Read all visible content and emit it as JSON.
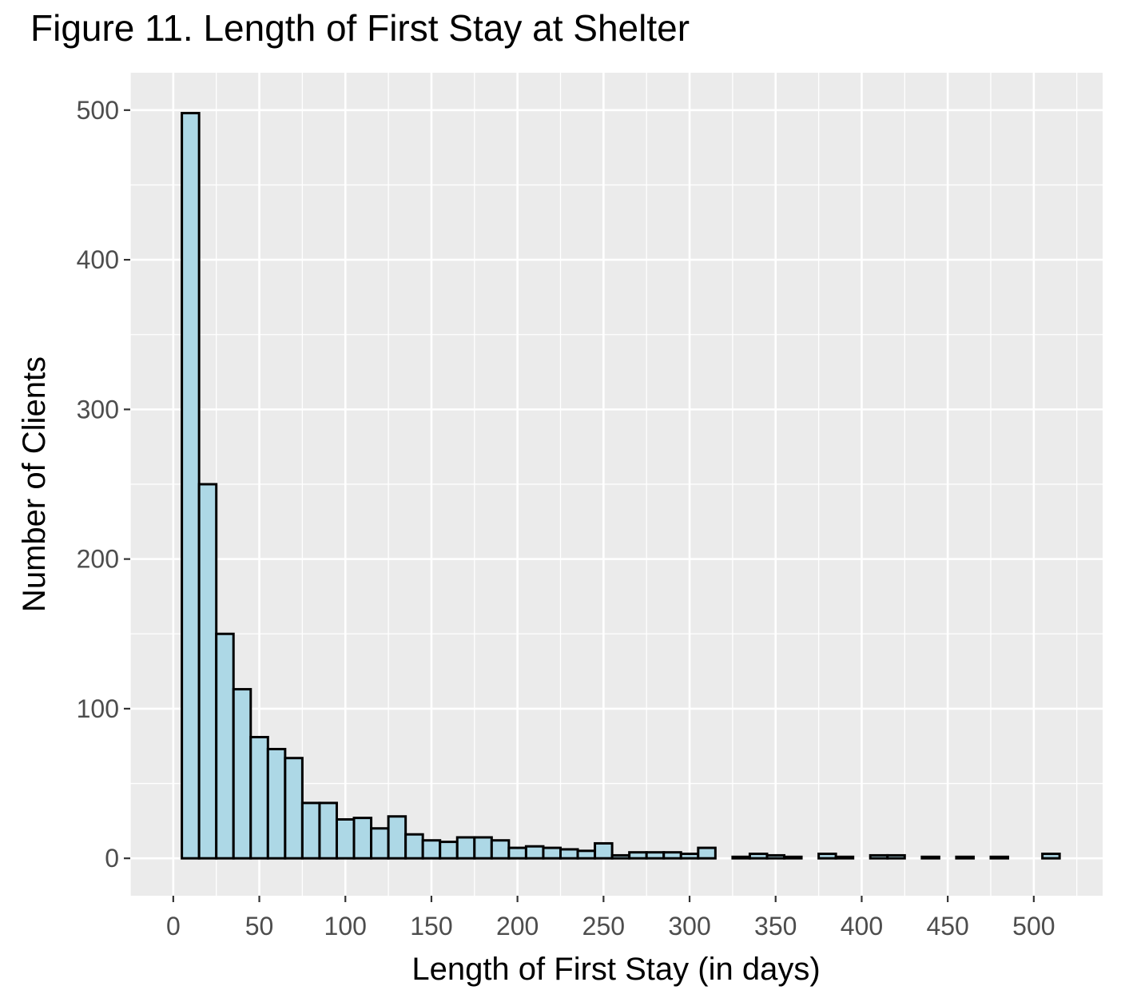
{
  "title": "Figure 11. Length of First Stay at Shelter",
  "chart_data": {
    "type": "bar",
    "title": "Figure 11. Length of First Stay at Shelter",
    "xlabel": "Length of First Stay (in days)",
    "ylabel": "Number of Clients",
    "xlim": [
      -25,
      540
    ],
    "ylim": [
      -25,
      525
    ],
    "x_ticks": [
      0,
      50,
      100,
      150,
      200,
      250,
      300,
      350,
      400,
      450,
      500
    ],
    "y_ticks": [
      0,
      100,
      200,
      300,
      400,
      500
    ],
    "bin_width": 10,
    "bins_x": [
      10,
      20,
      30,
      40,
      50,
      60,
      70,
      80,
      90,
      100,
      110,
      120,
      130,
      140,
      150,
      160,
      170,
      180,
      190,
      200,
      210,
      220,
      230,
      240,
      250,
      260,
      270,
      280,
      290,
      300,
      310,
      320,
      330,
      340,
      350,
      360,
      370,
      380,
      390,
      400,
      410,
      420,
      430,
      440,
      450,
      460,
      470,
      480,
      490,
      500,
      510
    ],
    "values": [
      498,
      250,
      150,
      113,
      81,
      73,
      67,
      37,
      37,
      26,
      27,
      20,
      28,
      16,
      12,
      11,
      14,
      14,
      12,
      7,
      8,
      7,
      6,
      5,
      10,
      2,
      4,
      4,
      4,
      3,
      7,
      0,
      1,
      3,
      2,
      1,
      0,
      3,
      1,
      0,
      2,
      2,
      0,
      1,
      0,
      1,
      0,
      1,
      0,
      0,
      3
    ],
    "grid": true,
    "bar_fill": "#add8e6",
    "bar_stroke": "#000000",
    "panel_background": "#ebebeb"
  }
}
